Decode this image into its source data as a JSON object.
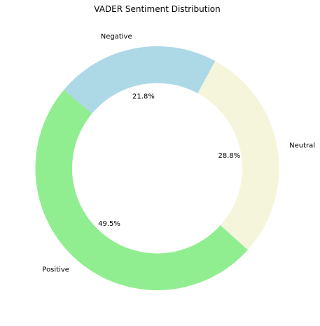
{
  "chart_data": {
    "type": "pie",
    "variant": "donut",
    "title": "VADER Sentiment Distribution",
    "categories": [
      "Positive",
      "Neutral",
      "Negative"
    ],
    "values": [
      49.5,
      28.8,
      21.8
    ],
    "value_labels": [
      "49.5%",
      "28.8%",
      "21.8%"
    ],
    "colors": [
      "#90ee90",
      "#f5f5dc",
      "#add8e6"
    ],
    "start_angle_deg": 140,
    "direction": "counterclockwise",
    "legend": "none"
  }
}
